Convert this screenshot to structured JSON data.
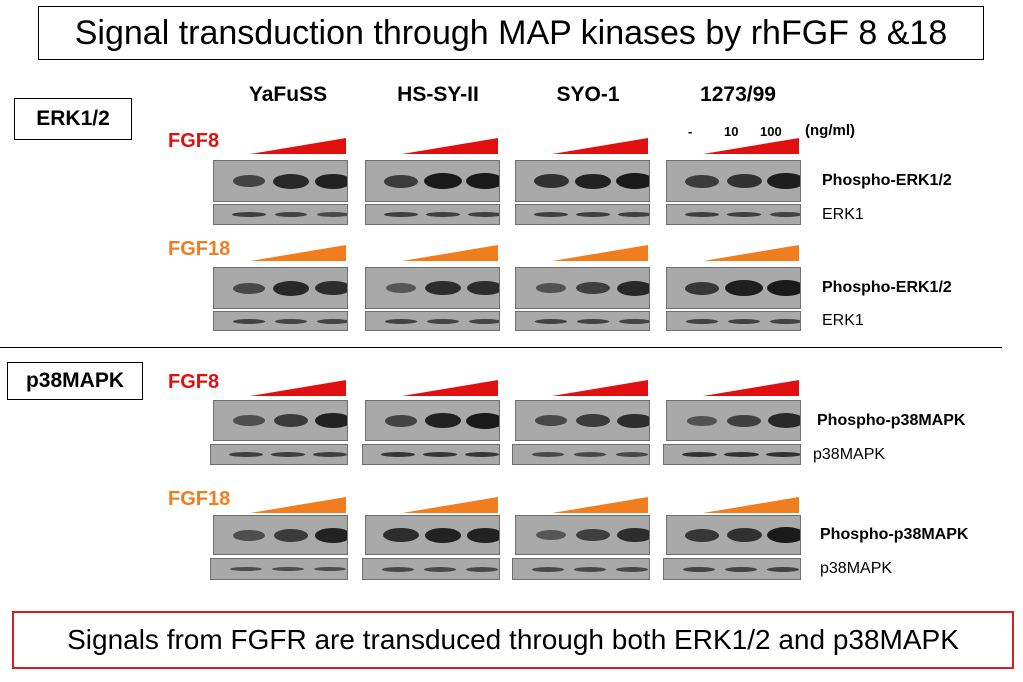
{
  "title": "Signal transduction through MAP kinases by rhFGF 8 &18",
  "sections": {
    "erk": "ERK1/2",
    "p38": "p38MAPK"
  },
  "cell_lines": [
    "YaFuSS",
    "HS-SY-II",
    "SYO-1",
    "1273/99"
  ],
  "concentrations": {
    "levels": [
      "-",
      "10",
      "100"
    ],
    "unit": "(ng/ml)"
  },
  "treatments": {
    "fgf8": "FGF8",
    "fgf18": "FGF18"
  },
  "row_labels": {
    "phospho_erk": "Phospho-ERK1/2",
    "erk1": "ERK1",
    "phospho_p38": "Phospho-p38MAPK",
    "p38": "p38MAPK"
  },
  "conclusion": "Signals from FGFR are transduced through both ERK1/2 and p38MAPK",
  "colors": {
    "fgf8": "#e01010",
    "fgf18": "#f07d1e",
    "conclusion_border": "#d81e1e",
    "blot_bg": "#a9a9a9",
    "band": "#1a1a1a"
  },
  "blot_bands": {
    "rows": [
      {
        "label": "Phospho-ERK1/2",
        "cells": [
          [
            0.55,
            0.85,
            0.9
          ],
          [
            0.65,
            1.0,
            1.0
          ],
          [
            0.75,
            0.9,
            1.0
          ],
          [
            0.65,
            0.75,
            0.95
          ]
        ]
      },
      {
        "label": "ERK1",
        "cells": [
          [
            0.6,
            0.55,
            0.5
          ],
          [
            0.6,
            0.6,
            0.6
          ],
          [
            0.6,
            0.6,
            0.6
          ],
          [
            0.6,
            0.6,
            0.55
          ]
        ]
      },
      {
        "label": "Phospho-ERK1/2",
        "cells": [
          [
            0.5,
            0.85,
            0.8
          ],
          [
            0.35,
            0.8,
            0.8
          ],
          [
            0.4,
            0.6,
            0.85
          ],
          [
            0.7,
            0.95,
            1.0
          ]
        ]
      },
      {
        "label": "ERK1",
        "cells": [
          [
            0.55,
            0.55,
            0.55
          ],
          [
            0.55,
            0.55,
            0.55
          ],
          [
            0.55,
            0.55,
            0.55
          ],
          [
            0.55,
            0.55,
            0.55
          ]
        ]
      },
      {
        "label": "Phospho-p38MAPK",
        "cells": [
          [
            0.45,
            0.65,
            0.9
          ],
          [
            0.55,
            0.9,
            1.0
          ],
          [
            0.5,
            0.65,
            0.8
          ],
          [
            0.4,
            0.6,
            0.85
          ]
        ]
      },
      {
        "label": "p38MAPK",
        "cells": [
          [
            0.6,
            0.6,
            0.6
          ],
          [
            0.7,
            0.7,
            0.7
          ],
          [
            0.5,
            0.5,
            0.5
          ],
          [
            0.75,
            0.75,
            0.75
          ]
        ]
      },
      {
        "label": "Phospho-p38MAPK",
        "cells": [
          [
            0.45,
            0.65,
            0.9
          ],
          [
            0.8,
            0.9,
            0.9
          ],
          [
            0.35,
            0.6,
            0.8
          ],
          [
            0.7,
            0.75,
            1.0
          ]
        ]
      },
      {
        "label": "p38MAPK",
        "cells": [
          [
            0.45,
            0.45,
            0.45
          ],
          [
            0.5,
            0.5,
            0.5
          ],
          [
            0.5,
            0.5,
            0.5
          ],
          [
            0.55,
            0.55,
            0.55
          ]
        ]
      }
    ]
  }
}
